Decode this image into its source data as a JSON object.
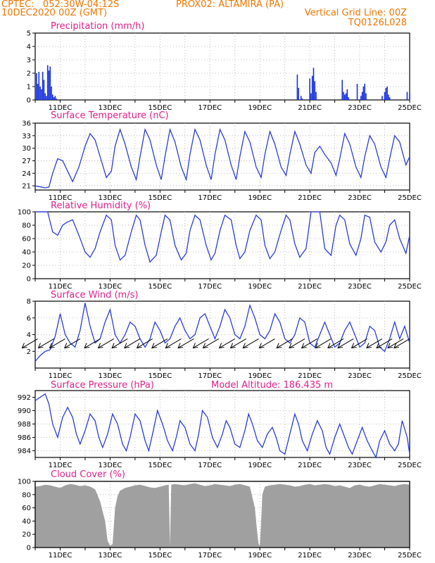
{
  "header": {
    "line1_left": "CPTEC:   052:30W-04:12S",
    "line1_mid": "PROX02: ALTAMIRA (PA)",
    "line2_left": "10DEC2020 00Z (GMT)",
    "line2_right": "Vertical Grid Line: 00Z",
    "line3_right": "TQ0126L028"
  },
  "colors": {
    "header": "#ee7700",
    "title": "#e0208a",
    "line": "#2b3ddb",
    "bar": "#1b34e0",
    "cloud": "#a0a0a0",
    "grid": "#aaaaaa"
  },
  "x_ticks": [
    "11DEC",
    "13DEC",
    "15DEC",
    "17DEC",
    "19DEC",
    "21DEC",
    "23DEC",
    "25DEC"
  ],
  "chart_data": [
    {
      "type": "bar",
      "title": "Precipitation (mm/h)",
      "ylabel": "mm/h",
      "ylim": [
        0,
        5
      ],
      "yticks": [
        0,
        1,
        2,
        3,
        4,
        5
      ],
      "x_range_days": [
        10,
        25
      ],
      "x": [
        10.05,
        10.1,
        10.15,
        10.2,
        10.25,
        10.3,
        10.35,
        10.4,
        10.45,
        10.5,
        10.55,
        10.6,
        10.65,
        10.7,
        10.75,
        10.8,
        10.85,
        20.5,
        20.55,
        20.65,
        20.7,
        21.0,
        21.05,
        21.1,
        21.15,
        21.2,
        21.25,
        22.3,
        22.35,
        22.4,
        22.45,
        22.5,
        22.55,
        22.9,
        23.05,
        23.1,
        23.15,
        23.2,
        23.25,
        23.9,
        24.0,
        24.05,
        24.1,
        24.15,
        24.2,
        24.9,
        25.0
      ],
      "values": [
        2.0,
        1.2,
        2.1,
        1.0,
        0.8,
        2.1,
        1.5,
        0.5,
        0.3,
        2.6,
        2.2,
        2.5,
        1.0,
        0.4,
        0.2,
        0.3,
        0.1,
        1.9,
        0.9,
        0.3,
        0.1,
        1.6,
        0.5,
        1.8,
        2.4,
        1.4,
        0.6,
        1.5,
        0.6,
        0.4,
        0.5,
        0.8,
        0.2,
        1.2,
        0.3,
        0.6,
        1.0,
        1.2,
        0.5,
        0.3,
        0.6,
        0.9,
        1.0,
        0.4,
        0.2,
        0.6,
        0.5
      ]
    },
    {
      "type": "line",
      "title": "Surface Temperature (nC)",
      "ylabel": "nC",
      "ylim": [
        20,
        36
      ],
      "yticks": [
        21,
        24,
        27,
        30,
        33,
        36
      ],
      "x_range_days": [
        10,
        25
      ],
      "x": [
        10.0,
        10.25,
        10.4,
        10.55,
        10.7,
        10.9,
        11.1,
        11.3,
        11.5,
        11.75,
        12.0,
        12.2,
        12.4,
        12.6,
        12.85,
        13.05,
        13.2,
        13.4,
        13.6,
        13.85,
        14.05,
        14.2,
        14.4,
        14.6,
        14.85,
        15.05,
        15.2,
        15.4,
        15.6,
        15.85,
        16.05,
        16.2,
        16.4,
        16.6,
        16.85,
        17.05,
        17.2,
        17.4,
        17.6,
        17.85,
        18.05,
        18.2,
        18.4,
        18.6,
        18.85,
        19.05,
        19.2,
        19.4,
        19.6,
        19.85,
        20.05,
        20.2,
        20.4,
        20.6,
        20.85,
        21.05,
        21.2,
        21.4,
        21.6,
        21.85,
        22.05,
        22.2,
        22.4,
        22.6,
        22.85,
        23.05,
        23.2,
        23.4,
        23.6,
        23.85,
        24.05,
        24.2,
        24.4,
        24.6,
        24.85,
        25.0
      ],
      "values": [
        21.0,
        20.7,
        20.5,
        20.7,
        24.0,
        27.5,
        27.0,
        24.5,
        22.0,
        25.5,
        30.5,
        33.5,
        32.0,
        28.0,
        23.0,
        24.5,
        30.5,
        34.5,
        31.0,
        25.5,
        22.5,
        28.0,
        34.5,
        32.0,
        26.0,
        22.5,
        28.0,
        34.5,
        31.5,
        25.5,
        22.5,
        28.5,
        34.5,
        32.0,
        26.0,
        22.5,
        28.5,
        34.5,
        32.0,
        26.0,
        22.5,
        28.0,
        34.0,
        31.5,
        25.5,
        23.0,
        28.5,
        34.0,
        31.0,
        25.5,
        23.5,
        28.5,
        34.0,
        31.0,
        26.0,
        24.0,
        29.0,
        30.5,
        28.5,
        26.5,
        23.5,
        27.5,
        33.5,
        31.0,
        25.5,
        23.0,
        28.0,
        33.0,
        31.0,
        25.5,
        23.0,
        27.5,
        33.0,
        31.5,
        26.0,
        28.0
      ]
    },
    {
      "type": "line",
      "title": "Relative Humidity (%)",
      "ylabel": "%",
      "ylim": [
        0,
        100
      ],
      "yticks": [
        0,
        20,
        40,
        60,
        80,
        100
      ],
      "x_range_days": [
        10,
        25
      ],
      "x": [
        10.0,
        10.3,
        10.5,
        10.7,
        10.9,
        11.1,
        11.3,
        11.5,
        11.75,
        12.0,
        12.2,
        12.4,
        12.6,
        12.85,
        13.05,
        13.2,
        13.4,
        13.6,
        13.85,
        14.05,
        14.2,
        14.4,
        14.6,
        14.85,
        15.05,
        15.2,
        15.4,
        15.6,
        15.85,
        16.05,
        16.2,
        16.4,
        16.6,
        16.85,
        17.05,
        17.2,
        17.4,
        17.6,
        17.85,
        18.05,
        18.2,
        18.4,
        18.6,
        18.85,
        19.05,
        19.2,
        19.4,
        19.6,
        19.85,
        20.05,
        20.2,
        20.4,
        20.6,
        20.85,
        21.05,
        21.2,
        21.4,
        21.6,
        21.85,
        22.05,
        22.2,
        22.4,
        22.6,
        22.85,
        23.05,
        23.2,
        23.4,
        23.6,
        23.85,
        24.05,
        24.2,
        24.4,
        24.6,
        24.85,
        25.0
      ],
      "values": [
        100,
        100,
        100,
        70,
        65,
        80,
        85,
        88,
        65,
        40,
        32,
        45,
        70,
        95,
        88,
        50,
        28,
        35,
        70,
        95,
        88,
        50,
        25,
        35,
        70,
        95,
        88,
        50,
        28,
        38,
        72,
        95,
        88,
        50,
        28,
        38,
        72,
        95,
        88,
        50,
        30,
        40,
        72,
        95,
        88,
        50,
        30,
        40,
        72,
        95,
        88,
        52,
        32,
        45,
        100,
        100,
        100,
        45,
        35,
        80,
        95,
        88,
        52,
        35,
        60,
        95,
        92,
        55,
        40,
        55,
        80,
        88,
        60,
        38,
        65
      ]
    },
    {
      "type": "line",
      "title": "Surface Wind (m/s)",
      "ylabel": "m/s",
      "ylim": [
        0,
        8
      ],
      "yticks": [
        2,
        4,
        6,
        8
      ],
      "x_range_days": [
        10,
        25
      ],
      "x": [
        10.0,
        10.2,
        10.4,
        10.6,
        10.8,
        11.0,
        11.2,
        11.4,
        11.6,
        11.8,
        12.0,
        12.2,
        12.4,
        12.6,
        12.8,
        13.0,
        13.2,
        13.4,
        13.6,
        13.8,
        14.0,
        14.2,
        14.4,
        14.6,
        14.8,
        15.0,
        15.2,
        15.4,
        15.6,
        15.8,
        16.0,
        16.2,
        16.4,
        16.6,
        16.8,
        17.0,
        17.2,
        17.4,
        17.6,
        17.8,
        18.0,
        18.2,
        18.4,
        18.6,
        18.8,
        19.0,
        19.2,
        19.4,
        19.6,
        19.8,
        20.0,
        20.2,
        20.4,
        20.6,
        20.8,
        21.0,
        21.2,
        21.4,
        21.6,
        21.8,
        22.0,
        22.2,
        22.4,
        22.6,
        22.8,
        23.0,
        23.2,
        23.4,
        23.6,
        23.8,
        24.0,
        24.2,
        24.4,
        24.6,
        24.8,
        25.0
      ],
      "values": [
        0.8,
        1.5,
        2.0,
        2.2,
        3.8,
        6.5,
        4.0,
        3.0,
        2.5,
        4.5,
        7.8,
        5.0,
        3.0,
        3.5,
        5.5,
        7.0,
        4.0,
        3.0,
        4.0,
        5.5,
        5.0,
        3.5,
        2.5,
        3.5,
        5.5,
        4.5,
        3.0,
        3.5,
        5.0,
        6.0,
        4.5,
        3.5,
        4.0,
        6.0,
        6.5,
        5.0,
        3.5,
        5.0,
        7.0,
        6.0,
        4.0,
        3.5,
        5.0,
        7.5,
        6.0,
        4.0,
        3.5,
        4.5,
        6.5,
        5.5,
        3.5,
        3.0,
        4.0,
        6.0,
        5.5,
        3.0,
        2.5,
        4.0,
        5.5,
        4.0,
        2.5,
        3.0,
        4.5,
        5.5,
        4.0,
        2.5,
        3.0,
        5.0,
        4.5,
        2.5,
        2.0,
        3.5,
        5.5,
        3.5,
        5.0,
        3.0
      ],
      "arrows_x": [
        10.1,
        10.75,
        11.2,
        11.8,
        12.6,
        13.15,
        13.7,
        14.2,
        14.7,
        15.3,
        15.85,
        16.35,
        16.95,
        17.35,
        18.0,
        18.45,
        18.95,
        19.6,
        20.3,
        20.8,
        21.3,
        21.85,
        22.35,
        22.75,
        23.3,
        23.9,
        24.3,
        24.75,
        25.0
      ]
    },
    {
      "type": "line",
      "title": "Surface Pressure (hPa)",
      "annotation": "Model Altitude: 186.435 m",
      "ylabel": "hPa",
      "ylim": [
        983,
        993
      ],
      "yticks": [
        984,
        986,
        988,
        990,
        992
      ],
      "x_range_days": [
        10,
        25
      ],
      "x": [
        10.0,
        10.2,
        10.4,
        10.55,
        10.7,
        10.9,
        11.1,
        11.3,
        11.5,
        11.65,
        11.8,
        12.0,
        12.2,
        12.4,
        12.55,
        12.7,
        12.9,
        13.1,
        13.3,
        13.5,
        13.65,
        13.8,
        14.0,
        14.2,
        14.4,
        14.55,
        14.7,
        14.9,
        15.1,
        15.3,
        15.5,
        15.65,
        15.8,
        16.0,
        16.2,
        16.4,
        16.55,
        16.7,
        16.9,
        17.1,
        17.3,
        17.5,
        17.65,
        17.8,
        18.0,
        18.2,
        18.4,
        18.55,
        18.7,
        18.9,
        19.1,
        19.3,
        19.5,
        19.65,
        19.8,
        20.0,
        20.2,
        20.4,
        20.55,
        20.7,
        20.9,
        21.1,
        21.3,
        21.5,
        21.65,
        21.8,
        22.0,
        22.2,
        22.4,
        22.55,
        22.7,
        22.9,
        23.1,
        23.3,
        23.5,
        23.65,
        23.8,
        24.0,
        24.2,
        24.4,
        24.55,
        24.7,
        24.9,
        25.0
      ],
      "values": [
        991.5,
        992.0,
        992.5,
        991.0,
        988.0,
        986.0,
        989.0,
        990.5,
        989.0,
        986.5,
        985.0,
        987.0,
        989.5,
        988.5,
        986.0,
        984.5,
        986.5,
        989.5,
        988.0,
        985.0,
        984.0,
        986.0,
        989.5,
        988.5,
        985.5,
        984.0,
        986.5,
        990.0,
        988.0,
        985.5,
        984.0,
        986.0,
        988.5,
        987.5,
        985.0,
        984.0,
        986.5,
        990.0,
        989.0,
        986.0,
        984.5,
        986.5,
        988.5,
        987.5,
        985.0,
        984.5,
        987.0,
        989.5,
        988.0,
        985.5,
        984.5,
        986.5,
        987.5,
        986.0,
        984.0,
        983.5,
        986.5,
        989.5,
        988.0,
        985.5,
        984.0,
        986.5,
        988.5,
        987.0,
        984.5,
        983.5,
        986.0,
        988.0,
        986.0,
        984.5,
        983.5,
        985.5,
        987.5,
        985.5,
        984.0,
        983.0,
        985.5,
        987.0,
        985.0,
        984.0,
        985.0,
        988.5,
        986.0,
        983.5
      ]
    },
    {
      "type": "area",
      "title": "Cloud Cover (%)",
      "ylabel": "%",
      "ylim": [
        0,
        100
      ],
      "yticks": [
        0,
        20,
        40,
        60,
        80,
        100
      ],
      "x_range_days": [
        10,
        25
      ],
      "x": [
        10.0,
        10.2,
        10.4,
        10.6,
        10.8,
        11.0,
        11.2,
        11.4,
        11.6,
        11.8,
        12.0,
        12.2,
        12.4,
        12.6,
        12.8,
        12.85,
        12.9,
        13.0,
        13.1,
        13.2,
        13.3,
        13.4,
        13.6,
        13.8,
        14.0,
        14.2,
        14.4,
        14.6,
        14.8,
        15.0,
        15.2,
        15.35,
        15.4,
        15.45,
        15.6,
        15.8,
        16.0,
        16.2,
        16.4,
        16.6,
        16.8,
        17.0,
        17.2,
        17.4,
        17.6,
        17.8,
        18.0,
        18.2,
        18.4,
        18.6,
        18.8,
        18.9,
        18.95,
        19.0,
        19.05,
        19.1,
        19.2,
        19.4,
        19.6,
        19.8,
        20.0,
        20.2,
        20.4,
        20.6,
        20.8,
        21.0,
        21.2,
        21.4,
        21.6,
        21.8,
        22.0,
        22.2,
        22.4,
        22.6,
        22.8,
        23.0,
        23.2,
        23.4,
        23.6,
        23.8,
        24.0,
        24.2,
        24.4,
        24.6,
        24.8,
        25.0
      ],
      "values": [
        92,
        93,
        95,
        94,
        92,
        90,
        94,
        96,
        95,
        93,
        94,
        92,
        88,
        70,
        40,
        25,
        10,
        3,
        5,
        60,
        78,
        86,
        90,
        92,
        94,
        95,
        93,
        91,
        90,
        92,
        94,
        95,
        2,
        95,
        96,
        95,
        94,
        96,
        97,
        95,
        93,
        94,
        96,
        95,
        94,
        93,
        95,
        96,
        94,
        92,
        60,
        20,
        5,
        3,
        40,
        80,
        92,
        94,
        95,
        96,
        95,
        94,
        92,
        93,
        95,
        96,
        94,
        95,
        96,
        95,
        93,
        94,
        92,
        90,
        94,
        95,
        93,
        92,
        94,
        96,
        95,
        94,
        93,
        95,
        96,
        95
      ]
    }
  ]
}
